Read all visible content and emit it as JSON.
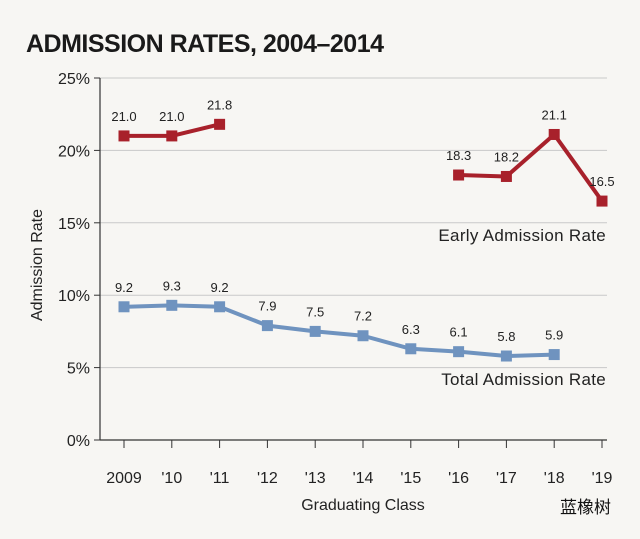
{
  "chart_data": {
    "type": "line",
    "title": "ADMISSION RATES, 2004–2014",
    "xlabel": "Graduating Class",
    "ylabel": "Admission Rate",
    "categories": [
      "2009",
      "'10",
      "'11",
      "'12",
      "'13",
      "'14",
      "'15",
      "'16",
      "'17",
      "'18",
      "'19"
    ],
    "yticks": [
      "0%",
      "5%",
      "10%",
      "15%",
      "20%",
      "25%"
    ],
    "ylim": [
      0,
      25
    ],
    "grid": true,
    "series": [
      {
        "name": "Early Admission Rate",
        "color": "#a8212b",
        "values": [
          21.0,
          21.0,
          21.8,
          null,
          null,
          null,
          null,
          18.3,
          18.2,
          21.1,
          16.5
        ],
        "labels": [
          "21.0",
          "21.0",
          "21.8",
          null,
          null,
          null,
          null,
          "18.3",
          "18.2",
          "21.1",
          "16.5"
        ]
      },
      {
        "name": "Total Admission Rate",
        "color": "#6f93bf",
        "values": [
          9.2,
          9.3,
          9.2,
          7.9,
          7.5,
          7.2,
          6.3,
          6.1,
          5.8,
          5.9,
          null
        ],
        "labels": [
          "9.2",
          "9.3",
          "9.2",
          "7.9",
          "7.5",
          "7.2",
          "6.3",
          "6.1",
          "5.8",
          "5.9",
          null
        ]
      }
    ]
  },
  "watermark": "蓝橡树"
}
